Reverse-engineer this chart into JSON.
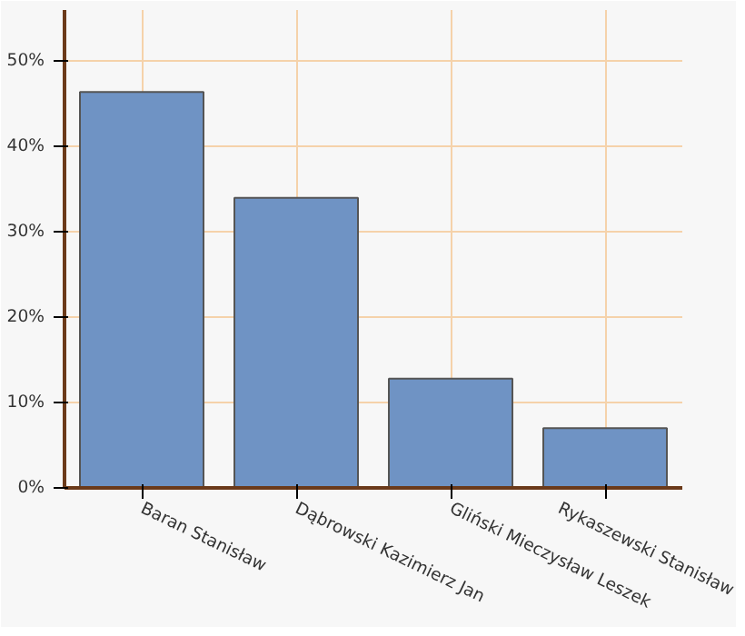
{
  "chart_data": {
    "type": "bar",
    "categories": [
      "Baran Stanisław",
      "Dąbrowski Kazimierz Jan",
      "Gliński Mieczysław Leszek",
      "Rykaszewski Stanisław"
    ],
    "values": [
      46.4,
      34.0,
      12.8,
      7.0
    ],
    "color": "#6f93c4",
    "ylim": [
      0,
      56
    ],
    "yticks": [
      {
        "value": 0,
        "label": "0%"
      },
      {
        "value": 10,
        "label": "10%"
      },
      {
        "value": 20,
        "label": "20%"
      },
      {
        "value": 30,
        "label": "30%"
      },
      {
        "value": 40,
        "label": "40%"
      },
      {
        "value": 50,
        "label": "50%"
      }
    ],
    "grid": true
  }
}
